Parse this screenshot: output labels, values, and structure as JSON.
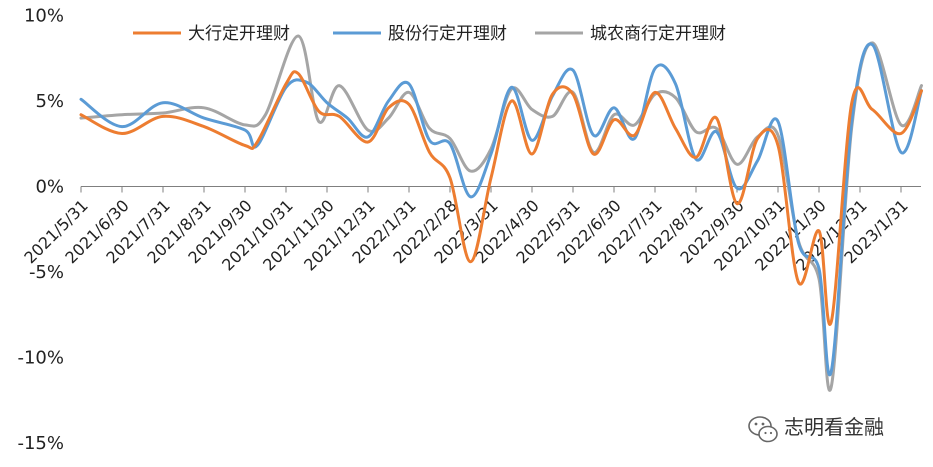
{
  "chart_data": {
    "type": "line",
    "title": "",
    "xlabel": "",
    "ylabel": "",
    "ylim": [
      -15,
      10
    ],
    "y_ticks": [
      "10%",
      "5%",
      "0%",
      "-5%",
      "-10%",
      "-15%"
    ],
    "x": [
      "2021/5/31",
      "2021/6/30",
      "2021/7/31",
      "2021/8/31",
      "2021/9/30",
      "2021/10/31",
      "2021/11/30",
      "2021/12/31",
      "2022/1/31",
      "2022/2/28",
      "2022/3/31",
      "2022/4/30",
      "2022/5/31",
      "2022/6/30",
      "2022/7/31",
      "2022/8/31",
      "2022/9/30",
      "2022/10/31",
      "2022/11/30",
      "2022/12/31",
      "2023/1/31"
    ],
    "legend_position": "top",
    "grid": false,
    "series": [
      {
        "name": "大行定开理财",
        "color": "#ED7D31",
        "points": [
          [
            0,
            4.2
          ],
          [
            1,
            3.1
          ],
          [
            2,
            4.1
          ],
          [
            3,
            3.5
          ],
          [
            4,
            2.4
          ],
          [
            4.3,
            2.6
          ],
          [
            5,
            6.0
          ],
          [
            5.3,
            6.6
          ],
          [
            5.8,
            4.4
          ],
          [
            6.3,
            4.1
          ],
          [
            7,
            2.6
          ],
          [
            7.5,
            4.6
          ],
          [
            8,
            4.8
          ],
          [
            8.5,
            2.0
          ],
          [
            9,
            0.5
          ],
          [
            9.5,
            -4.4
          ],
          [
            10,
            0.5
          ],
          [
            10.5,
            5.0
          ],
          [
            11,
            1.9
          ],
          [
            11.5,
            5.4
          ],
          [
            12,
            5.4
          ],
          [
            12.5,
            1.9
          ],
          [
            13,
            3.9
          ],
          [
            13.5,
            3.0
          ],
          [
            14,
            5.5
          ],
          [
            14.5,
            3.4
          ],
          [
            15,
            1.7
          ],
          [
            15.5,
            4.0
          ],
          [
            16,
            -1.0
          ],
          [
            16.5,
            2.8
          ],
          [
            17,
            2.4
          ],
          [
            17.5,
            -5.6
          ],
          [
            18,
            -2.6
          ],
          [
            18.3,
            -7.9
          ],
          [
            18.8,
            4.9
          ],
          [
            19.3,
            4.5
          ],
          [
            20,
            3.1
          ],
          [
            20.5,
            5.6
          ]
        ]
      },
      {
        "name": "股份行定开理财",
        "color": "#5B9BD5",
        "points": [
          [
            0,
            5.1
          ],
          [
            1,
            3.5
          ],
          [
            2,
            4.9
          ],
          [
            3,
            4.0
          ],
          [
            4,
            3.3
          ],
          [
            4.3,
            2.4
          ],
          [
            5,
            5.8
          ],
          [
            5.5,
            6.1
          ],
          [
            6,
            4.9
          ],
          [
            6.5,
            4.0
          ],
          [
            7,
            2.9
          ],
          [
            7.5,
            5.0
          ],
          [
            8,
            6.0
          ],
          [
            8.5,
            2.7
          ],
          [
            9,
            2.5
          ],
          [
            9.5,
            -0.6
          ],
          [
            10,
            1.9
          ],
          [
            10.5,
            5.8
          ],
          [
            11,
            2.7
          ],
          [
            11.5,
            5.3
          ],
          [
            12,
            6.8
          ],
          [
            12.5,
            3.0
          ],
          [
            13,
            4.6
          ],
          [
            13.5,
            2.8
          ],
          [
            14,
            6.9
          ],
          [
            14.5,
            6.0
          ],
          [
            15,
            1.6
          ],
          [
            15.5,
            3.2
          ],
          [
            16,
            -0.1
          ],
          [
            16.5,
            1.5
          ],
          [
            17,
            3.8
          ],
          [
            17.5,
            -3.3
          ],
          [
            18,
            -4.8
          ],
          [
            18.3,
            -10.8
          ],
          [
            18.8,
            3.8
          ],
          [
            19.3,
            8.3
          ],
          [
            20,
            2.0
          ],
          [
            20.5,
            5.6
          ]
        ]
      },
      {
        "name": "城农商行定开理财",
        "color": "#A5A5A5",
        "points": [
          [
            0,
            4.0
          ],
          [
            1,
            4.2
          ],
          [
            2,
            4.3
          ],
          [
            3,
            4.6
          ],
          [
            4,
            3.6
          ],
          [
            4.5,
            4.2
          ],
          [
            5.3,
            8.8
          ],
          [
            5.8,
            3.8
          ],
          [
            6.3,
            5.9
          ],
          [
            7,
            3.3
          ],
          [
            7.5,
            4.0
          ],
          [
            8,
            5.5
          ],
          [
            8.5,
            3.4
          ],
          [
            9,
            2.8
          ],
          [
            9.5,
            0.9
          ],
          [
            10,
            2.2
          ],
          [
            10.5,
            5.7
          ],
          [
            11,
            4.5
          ],
          [
            11.5,
            4.1
          ],
          [
            12,
            5.5
          ],
          [
            12.5,
            2.0
          ],
          [
            13,
            4.2
          ],
          [
            13.5,
            3.6
          ],
          [
            14,
            5.4
          ],
          [
            14.5,
            5.2
          ],
          [
            15,
            3.2
          ],
          [
            15.5,
            3.4
          ],
          [
            16,
            1.3
          ],
          [
            16.5,
            2.9
          ],
          [
            17,
            3.0
          ],
          [
            17.5,
            -3.2
          ],
          [
            18,
            -5.4
          ],
          [
            18.3,
            -11.7
          ],
          [
            18.8,
            3.5
          ],
          [
            19.3,
            8.4
          ],
          [
            20,
            3.6
          ],
          [
            20.5,
            5.9
          ]
        ]
      }
    ]
  },
  "watermark": {
    "text": "志明看金融",
    "icon": "wechat-icon"
  }
}
